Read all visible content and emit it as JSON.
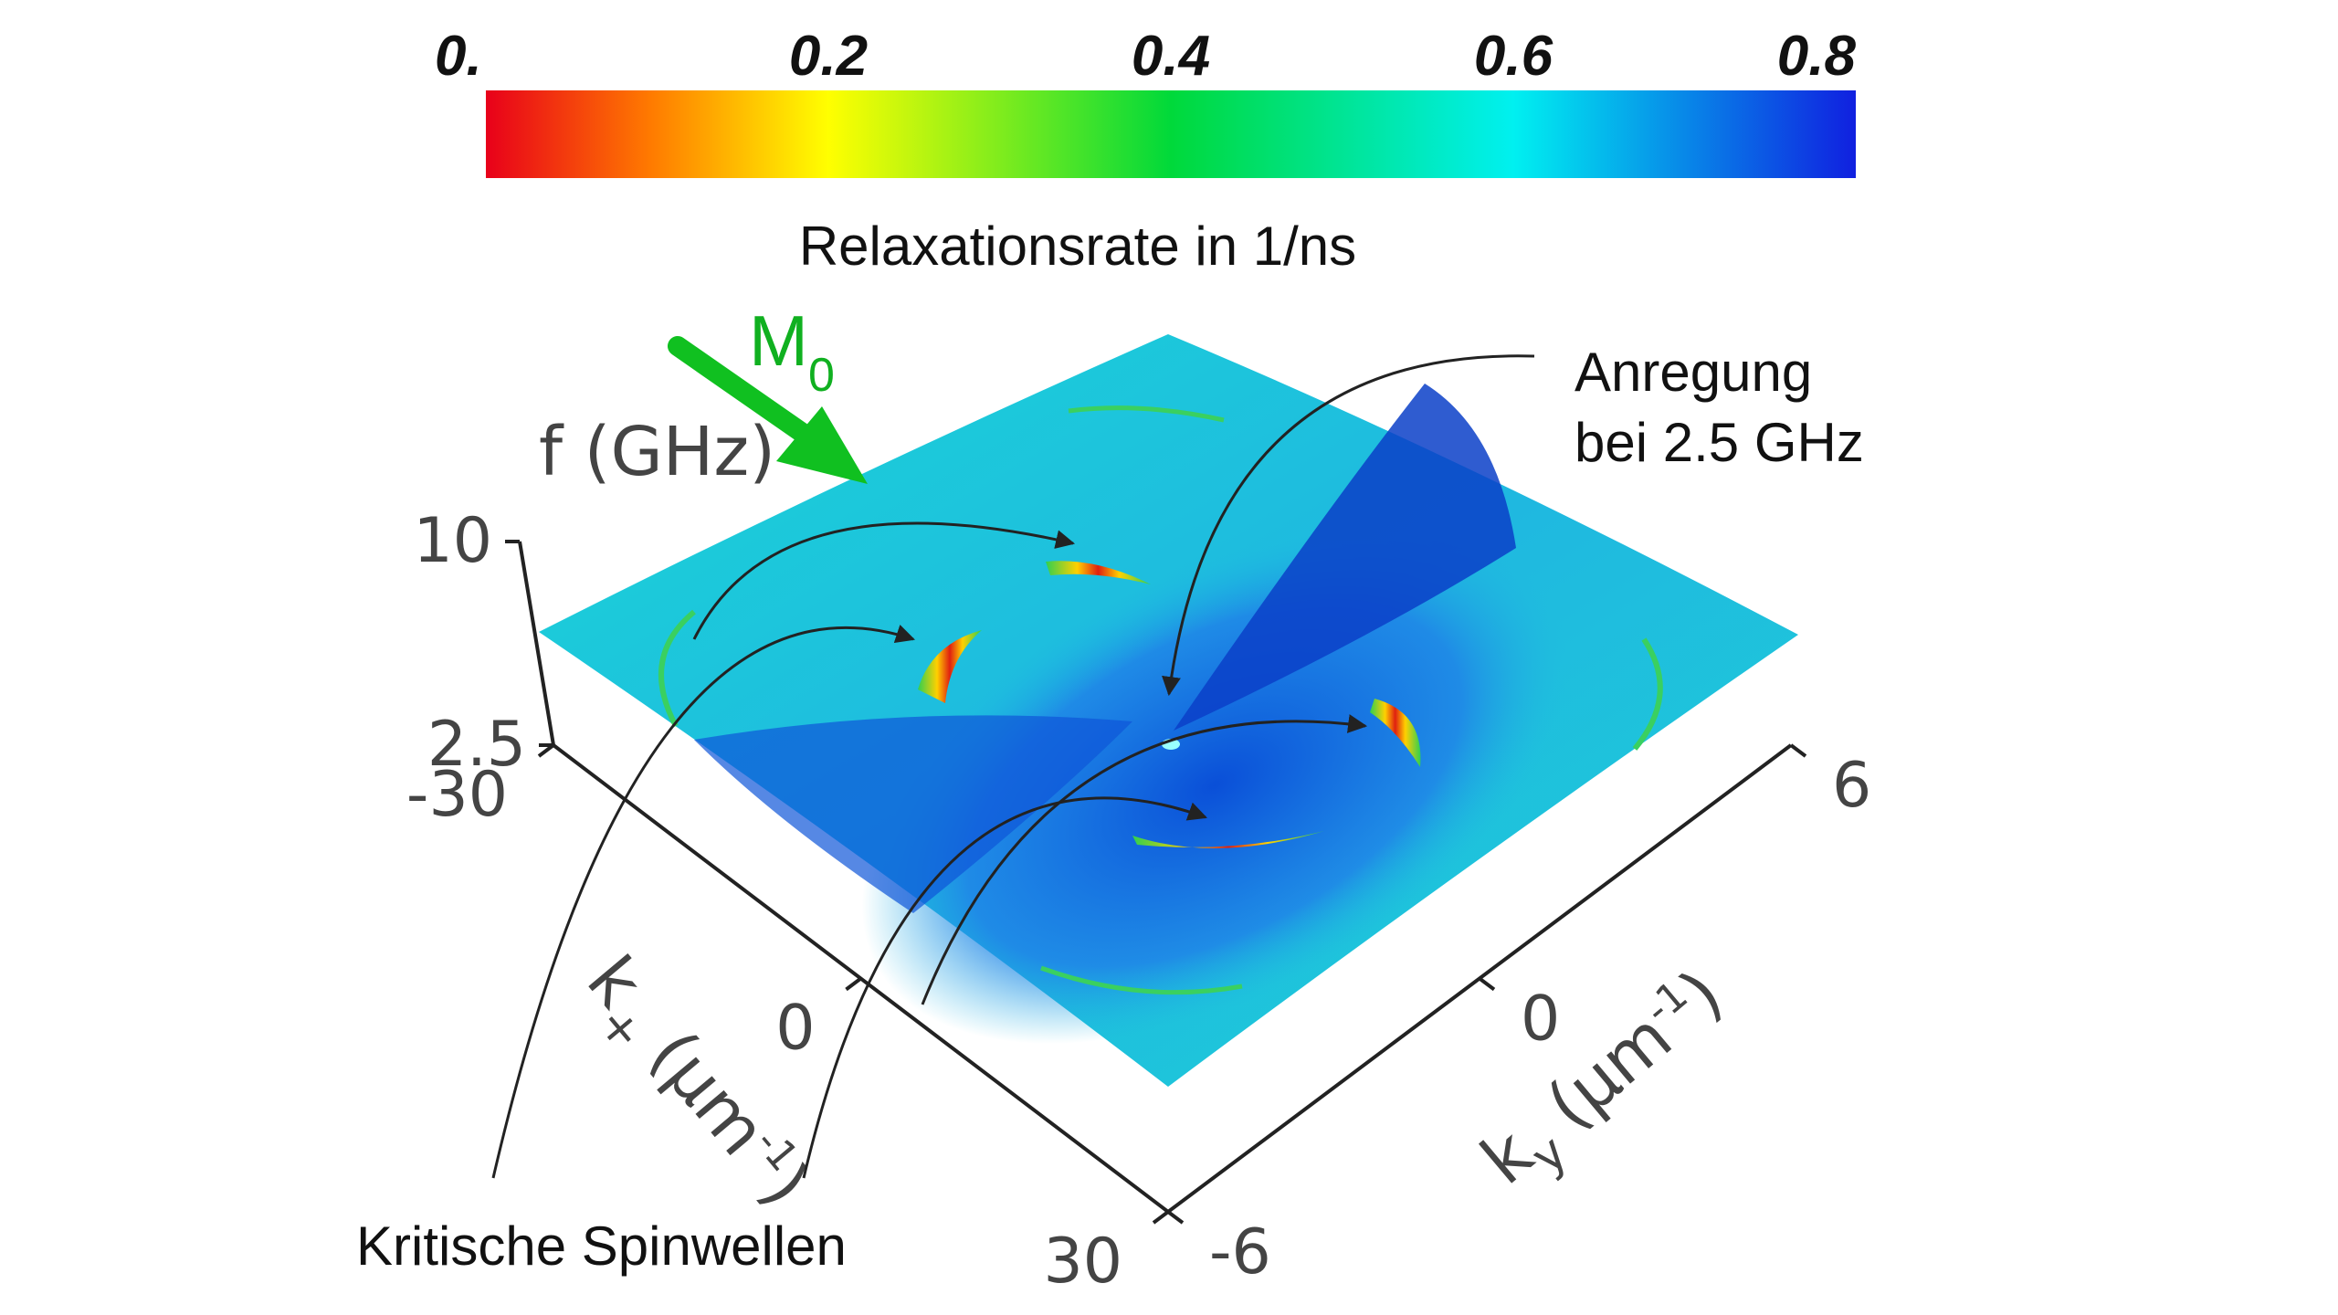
{
  "colorbar": {
    "ticks": [
      {
        "value": 0,
        "label": "0."
      },
      0.2,
      0.4,
      0.6,
      0.8
    ],
    "range": [
      0,
      0.8
    ],
    "label": "Relaxationsrate in 1/ns"
  },
  "axes": {
    "f": {
      "title": "f (GHz)",
      "lim": [
        10,
        2.5
      ],
      "ticks": [
        10,
        2.5
      ]
    },
    "kx": {
      "symbol": "k",
      "sub": "+",
      "unit": "(µm",
      "exp": "-1",
      "close": ")",
      "lim": [
        -30,
        30
      ],
      "ticks": [
        -30,
        0,
        30
      ]
    },
    "ky": {
      "symbol": "k",
      "sub": "y",
      "unit": "(µm",
      "exp": "-1",
      "close": ")",
      "lim": [
        -6,
        6
      ],
      "ticks": [
        -6,
        0,
        6
      ]
    }
  },
  "vector": {
    "symbol": "M",
    "sub": "0"
  },
  "annotations": {
    "excitation": [
      "Anregung",
      "bei 2.5 GHz"
    ],
    "critical": "Kritische Spinwellen"
  }
}
